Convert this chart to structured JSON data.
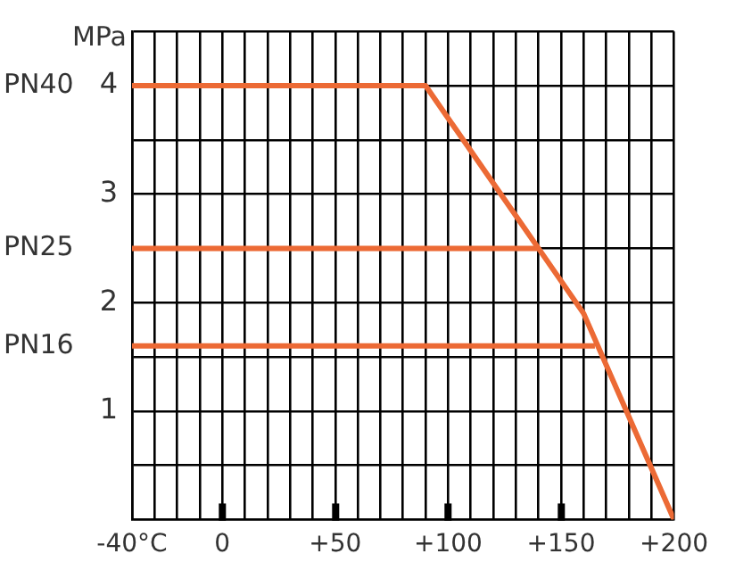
{
  "chart_data": {
    "type": "line",
    "ylabel": "MPa",
    "xlim": [
      -40,
      200
    ],
    "xticks": [
      {
        "value": -40,
        "label": "-40°C"
      },
      {
        "value": -30,
        "label": null
      },
      {
        "value": -20,
        "label": null
      },
      {
        "value": -10,
        "label": null
      },
      0,
      {
        "value": 10,
        "label": null
      },
      {
        "value": 20,
        "label": null
      },
      {
        "value": 30,
        "label": null
      },
      {
        "value": 40,
        "label": null
      },
      {
        "value": 50,
        "label": "+50"
      },
      {
        "value": 60,
        "label": null
      },
      {
        "value": 70,
        "label": null
      },
      {
        "value": 80,
        "label": null
      },
      {
        "value": 90,
        "label": null
      },
      {
        "value": 100,
        "label": "+100"
      },
      {
        "value": 110,
        "label": null
      },
      {
        "value": 120,
        "label": null
      },
      {
        "value": 130,
        "label": null
      },
      {
        "value": 140,
        "label": null
      },
      {
        "value": 150,
        "label": "+150"
      },
      {
        "value": 160,
        "label": null
      },
      {
        "value": 170,
        "label": null
      },
      {
        "value": 180,
        "label": null
      },
      {
        "value": 190,
        "label": null
      },
      {
        "value": 200,
        "label": "+200"
      }
    ],
    "ylim": [
      0,
      4.5
    ],
    "yticks": [
      {
        "value": 0,
        "label": null
      },
      {
        "value": 0.5,
        "label": null
      },
      1,
      {
        "value": 1.5,
        "label": null
      },
      2,
      {
        "value": 2.5,
        "label": null
      },
      3,
      {
        "value": 3.5,
        "label": null
      },
      4,
      {
        "value": 4.5,
        "label": null
      }
    ],
    "grid": true,
    "legend": false,
    "marker": "none",
    "line_style": "solid",
    "series": [
      {
        "name": "PN40",
        "color": "#ec6a35",
        "x": [
          -40,
          90,
          140,
          160,
          200
        ],
        "values": [
          4,
          4,
          2.5,
          1.9,
          0
        ]
      },
      {
        "name": "PN25",
        "color": "#ec6a35",
        "x": [
          -40,
          140
        ],
        "values": [
          2.5,
          2.5
        ]
      },
      {
        "name": "PN16",
        "color": "#ec6a35",
        "x": [
          -40,
          165
        ],
        "values": [
          1.6,
          1.6
        ]
      }
    ]
  }
}
